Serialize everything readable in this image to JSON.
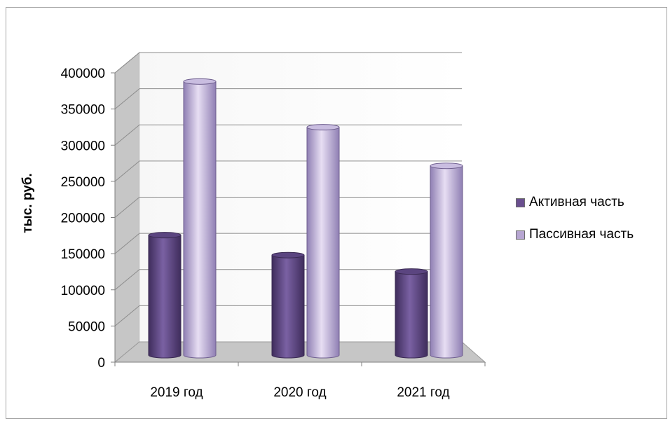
{
  "chart_data": {
    "type": "bar",
    "title": "",
    "xlabel": "",
    "ylabel": "тыс. руб.",
    "categories": [
      "2019 год",
      "2020 год",
      "2021 год"
    ],
    "series": [
      {
        "name": "Активная часть",
        "values": [
          168000,
          140000,
          117000
        ],
        "color": "#6a4f8f"
      },
      {
        "name": "Пассивная часть",
        "values": [
          383000,
          319000,
          265000
        ],
        "color": "#b7a6d2"
      }
    ],
    "ylim": [
      0,
      400000
    ],
    "yticks": [
      "400000",
      "350000",
      "300000",
      "250000",
      "200000",
      "150000",
      "100000",
      "50000",
      "0"
    ],
    "grid": true,
    "legend_position": "right",
    "style": "3d-cylinder"
  }
}
